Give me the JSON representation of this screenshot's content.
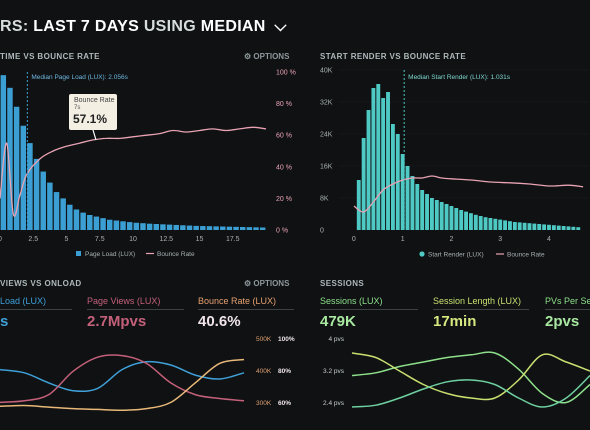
{
  "header": {
    "title_prefix": "RS: ",
    "title_range": "LAST 7 DAYS",
    "title_using": "USING",
    "title_stat": "MEDIAN",
    "chevron_icon": "chevron-down-icon"
  },
  "panels": {
    "left_top": {
      "title": "TIME VS BOUNCE RATE",
      "options_label": "OPTIONS",
      "median_label": "Median Page Load (LUX): 2.056s",
      "legend": [
        "Page Load (LUX)",
        "Bounce Rate"
      ],
      "tooltip": {
        "label": "Bounce Rate",
        "sub": "7s",
        "value": "57.1%"
      }
    },
    "right_top": {
      "title": "START RENDER VS BOUNCE RATE",
      "median_label": "Median Start Render (LUX): 1.031s",
      "legend": [
        "Start Render (LUX)",
        "Bounce Rate"
      ]
    },
    "left_bottom": {
      "title": "VIEWS VS ONLOAD",
      "options_label": "OPTIONS",
      "metrics": [
        {
          "label": "Load (LUX)",
          "value": "s",
          "color": "#3fa0d8"
        },
        {
          "label": "Page Views (LUX)",
          "value": "2.7Mpvs",
          "color": "#c4607a"
        },
        {
          "label": "Bounce Rate (LUX)",
          "value": "40.6%",
          "color": "#e8b878"
        }
      ],
      "right_axis_pvs": [
        "500K",
        "400K",
        "300K"
      ],
      "right_axis_pct": [
        "100%",
        "80%",
        "60%"
      ]
    },
    "right_bottom": {
      "title": "SESSIONS",
      "metrics": [
        {
          "label": "Sessions (LUX)",
          "value": "479K",
          "color": "#8ee08a"
        },
        {
          "label": "Session Length (LUX)",
          "value": "17min",
          "color": "#c8e070"
        },
        {
          "label": "PVs Per Sess",
          "value": "2pvs",
          "color": "#8ee08a"
        }
      ],
      "y_ticks": [
        "4 pvs",
        "3.2 pvs",
        "2.4 pvs"
      ]
    }
  },
  "chart_data": [
    {
      "type": "bar",
      "title": "TIME VS BOUNCE RATE",
      "x_ticks": [
        "0",
        "2.5",
        "5",
        "7.5",
        "10",
        "12.5",
        "15",
        "17.5"
      ],
      "y2_ticks": [
        "100 %",
        "80 %",
        "60 %",
        "40 %",
        "20 %",
        "0 %"
      ],
      "xlim": [
        0,
        20
      ],
      "y2lim": [
        0,
        100
      ],
      "ylim": [
        0,
        100
      ],
      "bar_width": 0.5,
      "series": [
        {
          "name": "Page Load (LUX)",
          "color": "#3c9fd3",
          "x": [
            0,
            0.5,
            1,
            1.5,
            2,
            2.5,
            3,
            3.5,
            4,
            4.5,
            5,
            5.5,
            6,
            6.5,
            7,
            7.5,
            8,
            8.5,
            9,
            9.5,
            10,
            10.5,
            11,
            11.5,
            12,
            12.5,
            13,
            13.5,
            14,
            14.5,
            15,
            15.5,
            16,
            16.5,
            17,
            17.5,
            18,
            18.5,
            19,
            19.5
          ],
          "values": [
            98,
            90,
            78,
            66,
            55,
            45,
            37,
            30,
            24,
            20,
            16,
            13,
            11,
            9.5,
            8.5,
            7.5,
            6.5,
            6,
            5.5,
            5,
            4.6,
            4.3,
            4,
            3.8,
            3.6,
            3.4,
            3.2,
            3,
            2.8,
            2.6,
            2.5,
            2.4,
            2.3,
            2.2,
            2.1,
            2,
            1.9,
            1.8,
            1.7,
            1.6
          ]
        },
        {
          "name": "Bounce Rate",
          "color": "#e9a3b3",
          "x": [
            0,
            0.5,
            1,
            1.5,
            2,
            3,
            4,
            5,
            6,
            7,
            8,
            9,
            10,
            11,
            12,
            13,
            14,
            15,
            16,
            17,
            18,
            19,
            20
          ],
          "values": [
            20,
            55,
            10,
            22,
            35,
            45,
            50,
            53,
            55,
            57,
            58,
            58,
            59,
            60,
            61,
            63,
            62,
            63,
            64,
            63,
            64,
            65,
            64
          ]
        }
      ],
      "median_x": 2.056
    },
    {
      "type": "bar",
      "title": "START RENDER VS BOUNCE RATE",
      "x_ticks": [
        "0",
        "1",
        "2",
        "3",
        "4",
        "5"
      ],
      "y_ticks": [
        "40K",
        "32K",
        "24K",
        "16K",
        "8K",
        "0"
      ],
      "xlim": [
        -0.1,
        4.8
      ],
      "ylim": [
        0,
        40000
      ],
      "bar_width": 0.1,
      "series": [
        {
          "name": "Start Render (LUX)",
          "color": "#4fc9c4",
          "x": [
            0.1,
            0.2,
            0.3,
            0.4,
            0.5,
            0.6,
            0.7,
            0.8,
            0.9,
            1,
            1.1,
            1.2,
            1.3,
            1.4,
            1.5,
            1.6,
            1.7,
            1.8,
            1.9,
            2,
            2.1,
            2.2,
            2.3,
            2.4,
            2.5,
            2.6,
            2.7,
            2.8,
            2.9,
            3,
            3.1,
            3.2,
            3.3,
            3.4,
            3.5,
            3.6,
            3.7,
            3.8,
            3.9,
            4,
            4.1,
            4.2,
            4.3,
            4.4,
            4.5,
            4.6
          ],
          "values": [
            12500,
            23000,
            30000,
            35500,
            36500,
            33000,
            34500,
            26500,
            24000,
            19000,
            16000,
            13500,
            11500,
            10000,
            9000,
            8000,
            7500,
            7000,
            6500,
            6000,
            5500,
            5000,
            4600,
            4200,
            3800,
            3500,
            3200,
            3000,
            2800,
            2600,
            2400,
            2200,
            2000,
            1900,
            1800,
            1700,
            1600,
            1500,
            1400,
            1300,
            1200,
            1100,
            1000,
            900,
            800,
            700
          ]
        },
        {
          "name": "Bounce Rate",
          "color": "#e9a3b3",
          "x": [
            0,
            0.2,
            0.4,
            0.6,
            0.8,
            1,
            1.2,
            1.4,
            1.6,
            1.8,
            2,
            2.4,
            2.8,
            3.2,
            3.6,
            4,
            4.4,
            4.7
          ],
          "values": [
            6000,
            4500,
            7000,
            10000,
            11500,
            12500,
            13000,
            13000,
            13500,
            13000,
            12800,
            12500,
            12000,
            11800,
            11500,
            11000,
            11200,
            10800
          ]
        }
      ],
      "median_x": 1.031
    },
    {
      "type": "line",
      "title": "VIEWS VS ONLOAD",
      "y_ticks": [
        "500K 100%",
        "400K 80%",
        "300K 60%"
      ],
      "ylim": [
        0,
        100
      ],
      "series": [
        {
          "name": "Load (LUX)",
          "color": "#3fa0d8",
          "x": [
            0,
            1,
            2,
            3,
            4,
            5,
            6,
            7,
            8,
            9,
            10
          ],
          "values": [
            62,
            58,
            45,
            35,
            38,
            62,
            72,
            68,
            55,
            50,
            58
          ]
        },
        {
          "name": "Page Views (LUX)",
          "color": "#c4607a",
          "x": [
            0,
            1,
            2,
            3,
            4,
            5,
            6,
            7,
            8,
            9,
            10
          ],
          "values": [
            20,
            22,
            30,
            60,
            78,
            80,
            70,
            45,
            30,
            25,
            22
          ]
        },
        {
          "name": "Bounce Rate (LUX)",
          "color": "#e8b878",
          "x": [
            0,
            1,
            2,
            3,
            4,
            5,
            6,
            7,
            8,
            9,
            10
          ],
          "values": [
            15,
            16,
            14,
            12,
            11,
            10,
            12,
            20,
            45,
            70,
            75
          ]
        }
      ]
    },
    {
      "type": "line",
      "title": "SESSIONS",
      "y_ticks": [
        "4 pvs",
        "3.2 pvs",
        "2.4 pvs"
      ],
      "ylim": [
        0,
        100
      ],
      "series": [
        {
          "name": "Sessions (LUX)",
          "color": "#8ee08a",
          "x": [
            0,
            1,
            2,
            3,
            4,
            5,
            6,
            7,
            8,
            9,
            10
          ],
          "values": [
            55,
            58,
            65,
            70,
            75,
            78,
            80,
            62,
            35,
            25,
            45
          ]
        },
        {
          "name": "Session Length (LUX)",
          "color": "#c8e070",
          "x": [
            0,
            1,
            2,
            3,
            4,
            5,
            6,
            7,
            8,
            9,
            10
          ],
          "values": [
            80,
            75,
            60,
            45,
            35,
            30,
            30,
            50,
            78,
            70,
            60
          ]
        },
        {
          "name": "PVs Per Sess",
          "color": "#6fd0a0",
          "x": [
            0,
            1,
            2,
            3,
            4,
            5,
            6,
            7,
            8,
            9,
            10
          ],
          "values": [
            20,
            22,
            30,
            40,
            48,
            50,
            45,
            30,
            20,
            30,
            55
          ]
        }
      ]
    }
  ]
}
